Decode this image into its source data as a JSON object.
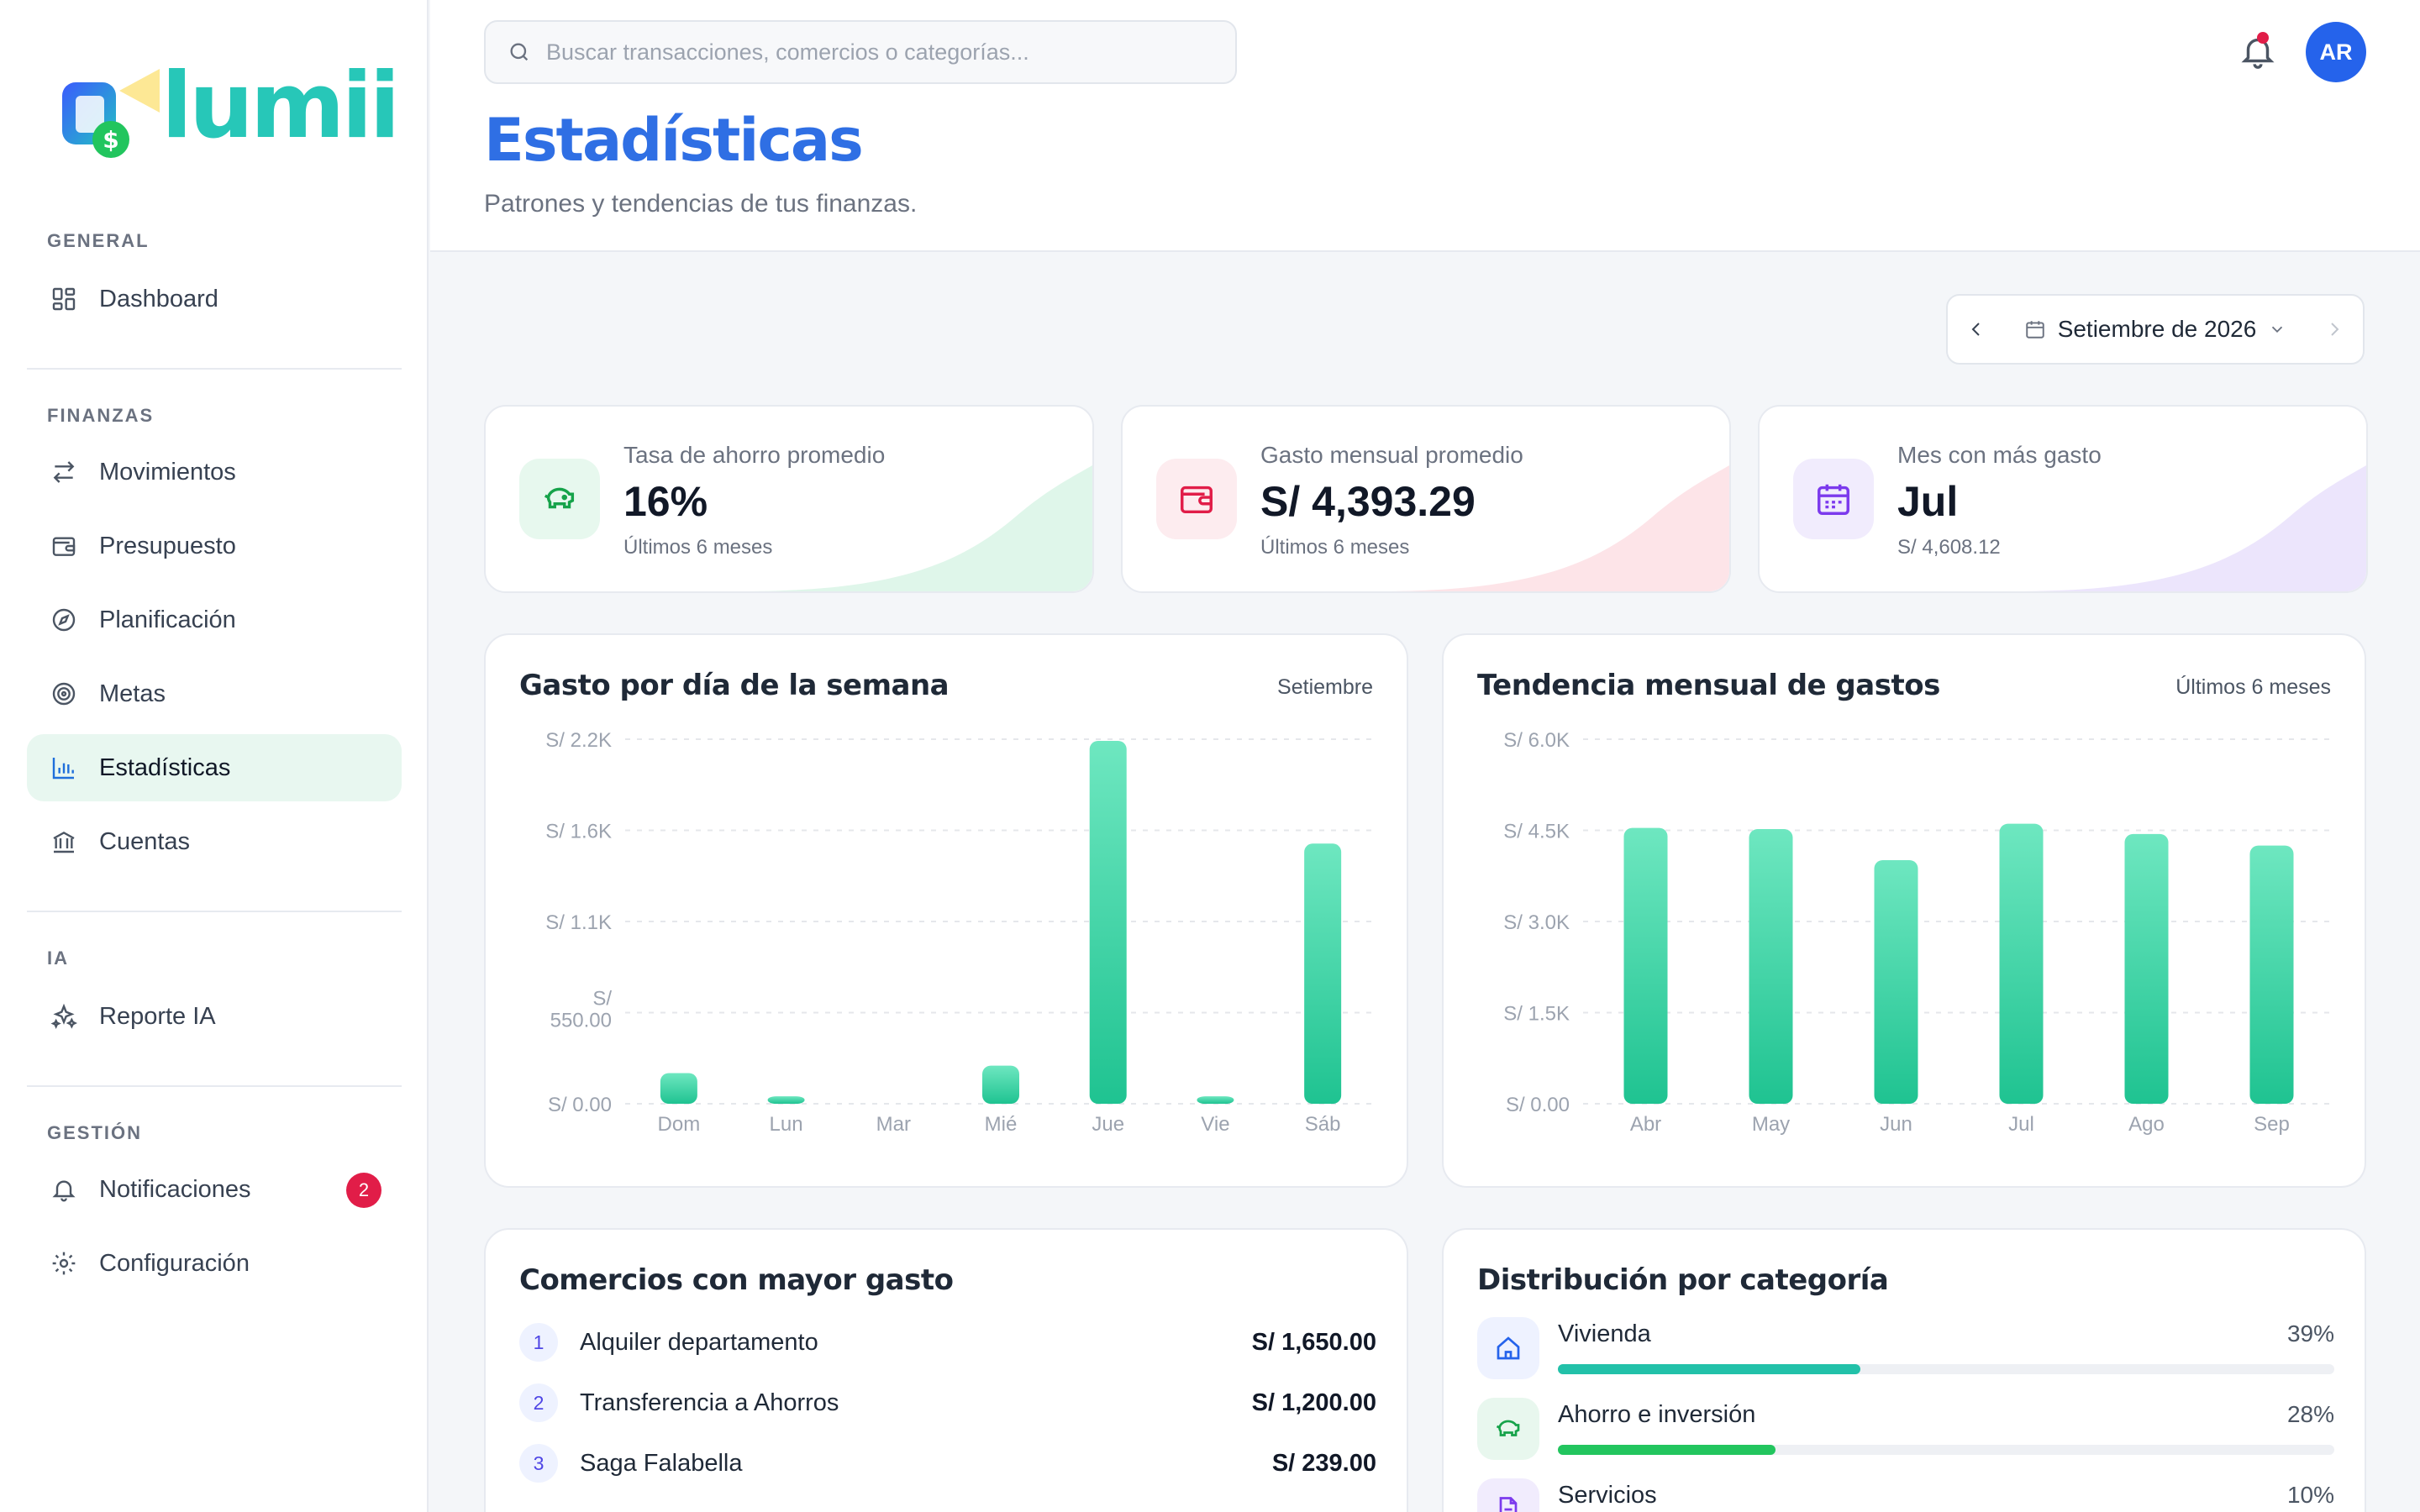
{
  "app": {
    "logo_text": "lumii"
  },
  "sidebar": {
    "sections": [
      {
        "title": "GENERAL",
        "items": [
          {
            "label": "Dashboard",
            "icon": "dashboard-icon"
          }
        ]
      },
      {
        "title": "FINANZAS",
        "items": [
          {
            "label": "Movimientos",
            "icon": "arrows-icon"
          },
          {
            "label": "Presupuesto",
            "icon": "wallet-icon"
          },
          {
            "label": "Planificación",
            "icon": "compass-icon"
          },
          {
            "label": "Metas",
            "icon": "target-icon"
          },
          {
            "label": "Estadísticas",
            "icon": "bar-chart-icon",
            "active": true
          },
          {
            "label": "Cuentas",
            "icon": "bank-icon"
          }
        ]
      },
      {
        "title": "IA",
        "items": [
          {
            "label": "Reporte IA",
            "icon": "sparkles-icon"
          }
        ]
      },
      {
        "title": "GESTIÓN",
        "items": [
          {
            "label": "Notificaciones",
            "icon": "bell-icon",
            "badge": "2"
          },
          {
            "label": "Configuración",
            "icon": "gear-icon"
          }
        ]
      }
    ]
  },
  "header": {
    "search_placeholder": "Buscar transacciones, comercios o categorías...",
    "avatar_initials": "AR",
    "title": "Estadísticas",
    "subtitle": "Patrones y tendencias de tus finanzas."
  },
  "month_picker": {
    "label": "Setiembre de 2026"
  },
  "stats": [
    {
      "label": "Tasa de ahorro promedio",
      "value": "16%",
      "note": "Últimos 6 meses",
      "icon": "piggy-bank-icon",
      "color": "#22c55e"
    },
    {
      "label": "Gasto mensual promedio",
      "value": "S/ 4,393.29",
      "note": "Últimos 6 meses",
      "icon": "wallet-icon",
      "color": "#e11d48"
    },
    {
      "label": "Mes con más gasto",
      "value": "Jul",
      "note": "S/ 4,608.12",
      "icon": "calendar-icon",
      "color": "#7c3aed"
    }
  ],
  "charts": {
    "weekday": {
      "title": "Gasto por día de la semana",
      "meta": "Setiembre"
    },
    "monthly": {
      "title": "Tendencia mensual de gastos",
      "meta": "Últimos 6 meses"
    }
  },
  "chart_data": [
    {
      "type": "bar",
      "title": "Gasto por día de la semana",
      "categories": [
        "Dom",
        "Lun",
        "Mar",
        "Mié",
        "Jue",
        "Vie",
        "Sáb"
      ],
      "values": [
        185,
        45,
        0,
        230,
        2190,
        45,
        1570
      ],
      "ylim": [
        0,
        2200
      ],
      "yticks": [
        "S/ 0.00",
        "S/ 550.00",
        "S/ 1.1K",
        "S/ 1.6K",
        "S/ 2.2K"
      ],
      "grid": true
    },
    {
      "type": "bar",
      "title": "Tendencia mensual de gastos",
      "categories": [
        "Abr",
        "May",
        "Jun",
        "Jul",
        "Ago",
        "Sep"
      ],
      "values": [
        4540,
        4520,
        4010,
        4608.12,
        4440,
        4250
      ],
      "ylim": [
        0,
        6000
      ],
      "yticks": [
        "S/ 0.00",
        "S/ 1.5K",
        "S/ 3.0K",
        "S/ 4.5K",
        "S/ 6.0K"
      ],
      "grid": true
    }
  ],
  "merchants": {
    "title": "Comercios con mayor gasto",
    "items": [
      {
        "rank": "1",
        "name": "Alquiler departamento",
        "amount": "S/ 1,650.00"
      },
      {
        "rank": "2",
        "name": "Transferencia a Ahorros",
        "amount": "S/ 1,200.00"
      },
      {
        "rank": "3",
        "name": "Saga Falabella",
        "amount": "S/ 239.00"
      }
    ]
  },
  "categories": {
    "title": "Distribución por categoría",
    "items": [
      {
        "name": "Vivienda",
        "pct": "39%",
        "fraction": 0.39,
        "icon": "home-icon",
        "bar_color": "#22c1a9",
        "bg": "#eef2ff"
      },
      {
        "name": "Ahorro e inversión",
        "pct": "28%",
        "fraction": 0.28,
        "icon": "piggy-bank-icon",
        "bar_color": "#22c55e",
        "bg": "#e8f7ee"
      },
      {
        "name": "Servicios",
        "pct": "10%",
        "fraction": 0.1,
        "icon": "document-icon",
        "bar_color": "#8b5cf6",
        "bg": "#f1ecfd"
      }
    ]
  }
}
